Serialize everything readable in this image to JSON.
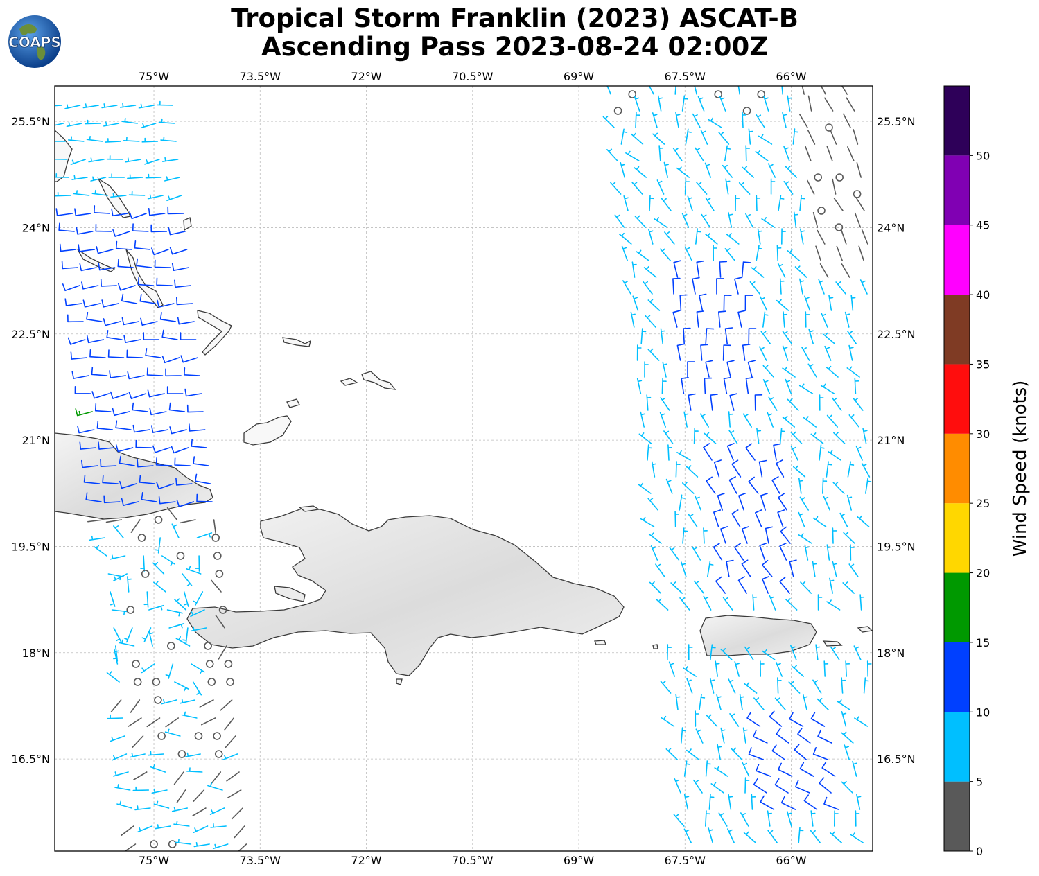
{
  "figure": {
    "title_line1": "Tropical Storm Franklin (2023) ASCAT-B",
    "title_line2": "Ascending Pass 2023-08-24 02:00Z",
    "logo_text": "COAPS",
    "colorbar_label": "Wind Speed (knots)"
  },
  "map": {
    "projection": "plate-carree",
    "lon_range": [
      -76.4,
      -64.85
    ],
    "lat_range": [
      15.2,
      26.0
    ],
    "lon_ticks": [
      "75°W",
      "73.5°W",
      "72°W",
      "70.5°W",
      "69°W",
      "67.5°W",
      "66°W"
    ],
    "lat_ticks": [
      "25.5°N",
      "24°N",
      "22.5°N",
      "21°N",
      "19.5°N",
      "18°N",
      "16.5°N"
    ],
    "gridlines": true,
    "land_shading": "grayscale terrain (Cuba, Hispaniola, Puerto Rico)",
    "islands": [
      "Cuba",
      "Hispaniola",
      "Puerto Rico",
      "Bahamas",
      "Turks and Caicos"
    ]
  },
  "colorbar": {
    "levels": [
      0,
      5,
      10,
      15,
      20,
      25,
      30,
      35,
      40,
      45,
      50,
      55
    ],
    "tick_labels": [
      "0",
      "5",
      "10",
      "15",
      "20",
      "25",
      "30",
      "35",
      "40",
      "45",
      "50"
    ],
    "colors": [
      "#595959",
      "#00bfff",
      "#0040ff",
      "#009900",
      "#ffd700",
      "#ff8c00",
      "#ff0d0d",
      "#7f3b24",
      "#ff00ff",
      "#8000b3",
      "#2e0059"
    ]
  },
  "wind_barbs": {
    "units": "knots",
    "swaths": [
      {
        "name": "west",
        "speed_bands": [
          "0-5",
          "5-10",
          "10-15",
          "15-20"
        ],
        "calm_circles": true
      },
      {
        "name": "east",
        "speed_bands": [
          "0-5",
          "5-10",
          "10-15"
        ],
        "calm_circles": true
      }
    ]
  }
}
